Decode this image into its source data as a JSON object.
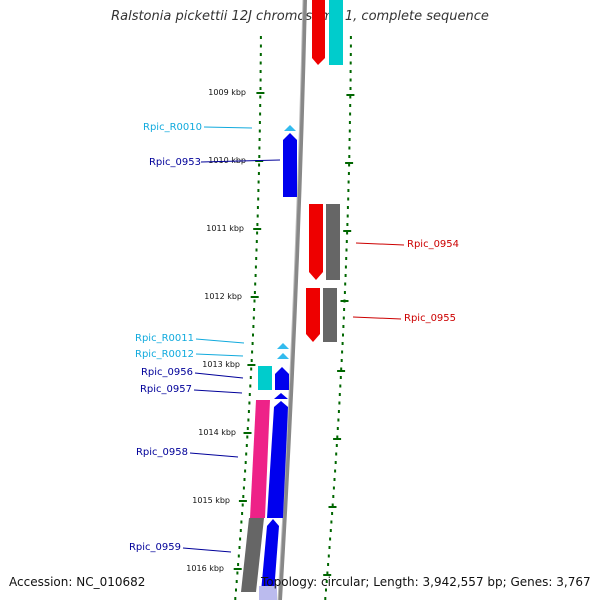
{
  "title": "Ralstonia pickettii 12J chromosome 1, complete sequence",
  "footer": {
    "accession": "Accession: NC_010682",
    "topology": "Topology: circular; Length: 3,942,557 bp; Genes: 3,767"
  },
  "scale_labels": [
    "1009 kbp",
    "1010 kbp",
    "1011 kbp",
    "1012 kbp",
    "1013 kbp",
    "1014 kbp",
    "1015 kbp",
    "1016 kbp"
  ],
  "colors": {
    "forward_cds": "#0000ee",
    "forward_rna": "#33bbee",
    "reverse_cds": "#ee0000",
    "cyan_block": "#00cccc",
    "gray_block": "#666666",
    "pink_block": "#ee2288",
    "label_blue": "#000099",
    "label_cyan": "#11aadd",
    "label_red": "#cc0000",
    "tick_green": "#006600"
  },
  "genes": [
    {
      "name": "Rpic_R0010",
      "strand": "forward",
      "type": "rna"
    },
    {
      "name": "Rpic_0953",
      "strand": "forward",
      "type": "cds"
    },
    {
      "name": "Rpic_0954",
      "strand": "reverse",
      "type": "cds"
    },
    {
      "name": "Rpic_0955",
      "strand": "reverse",
      "type": "cds"
    },
    {
      "name": "Rpic_R0011",
      "strand": "forward",
      "type": "rna"
    },
    {
      "name": "Rpic_R0012",
      "strand": "forward",
      "type": "rna"
    },
    {
      "name": "Rpic_0956",
      "strand": "forward",
      "type": "cds"
    },
    {
      "name": "Rpic_0957",
      "strand": "forward",
      "type": "cds"
    },
    {
      "name": "Rpic_0958",
      "strand": "forward",
      "type": "cds"
    },
    {
      "name": "Rpic_0959",
      "strand": "forward",
      "type": "cds"
    }
  ]
}
